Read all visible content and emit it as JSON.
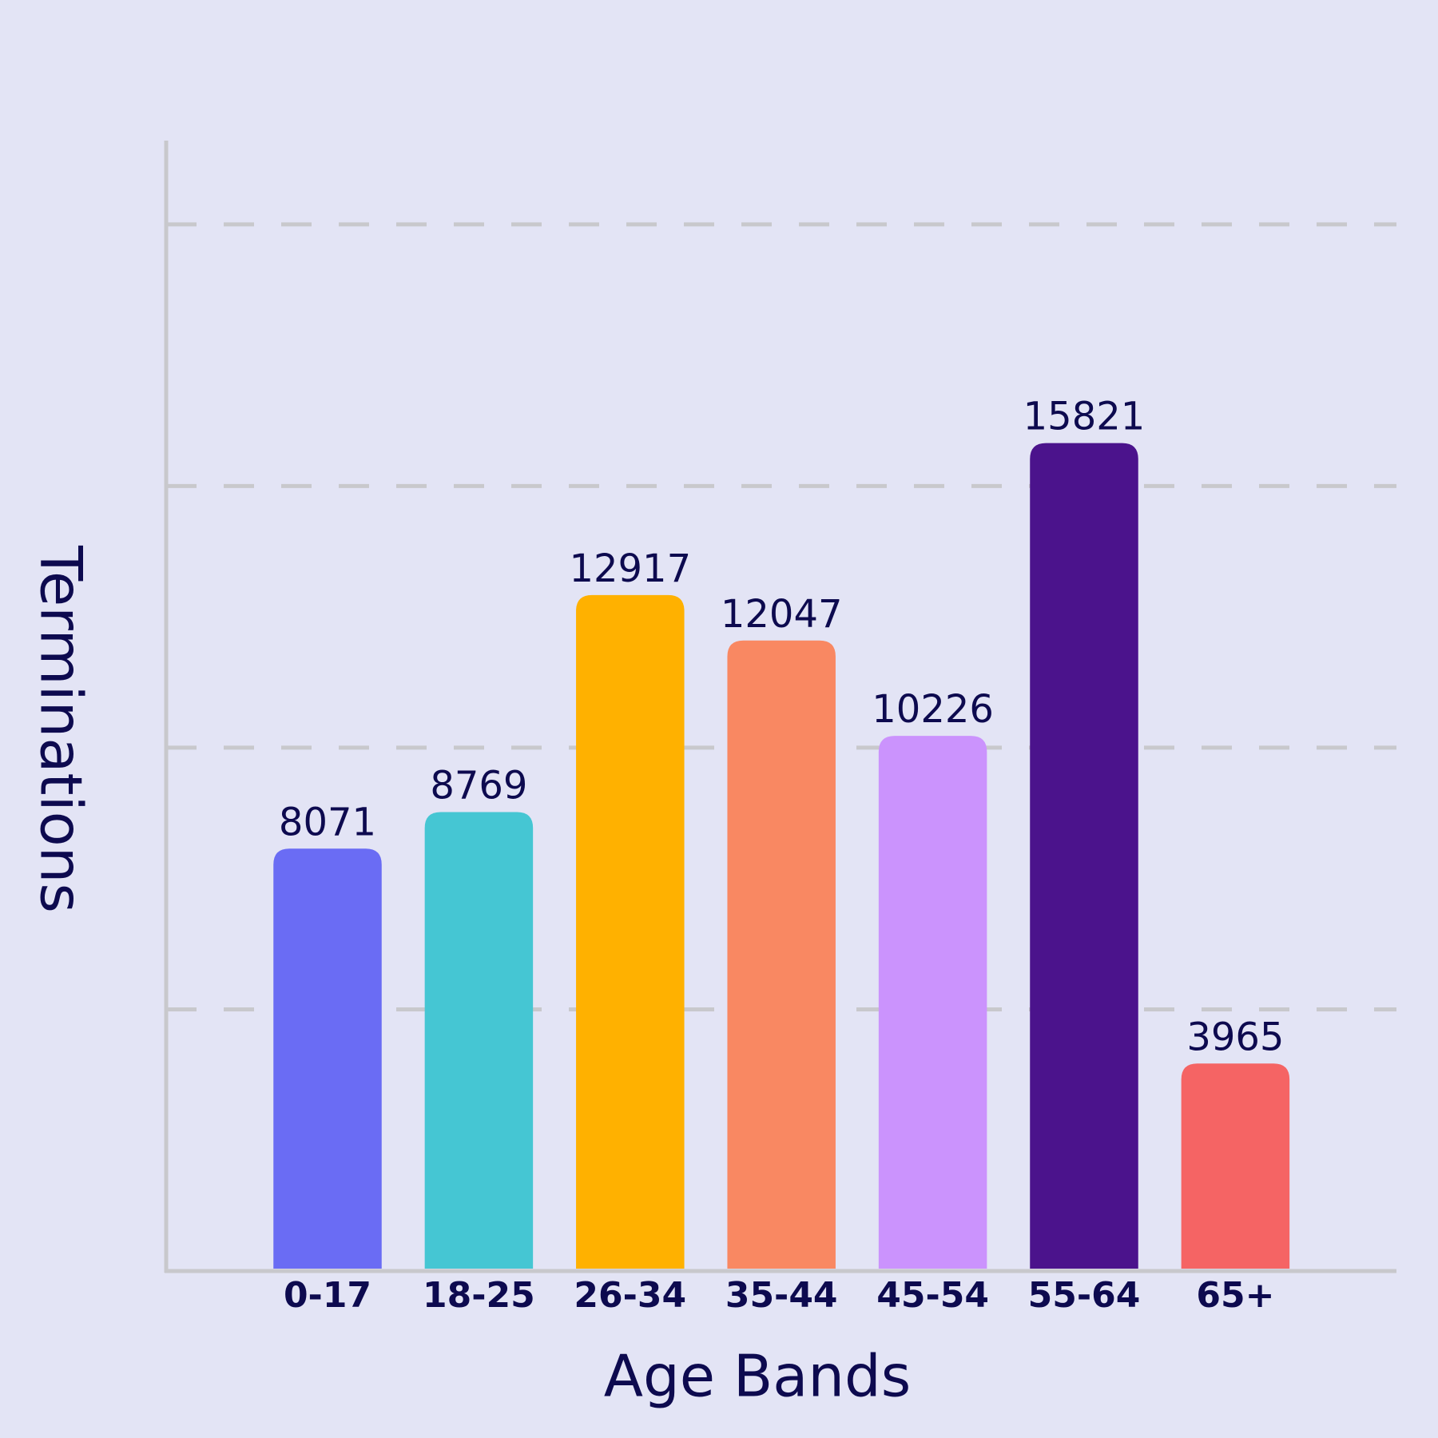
{
  "chart_data": {
    "type": "bar",
    "x_label": "Age Bands",
    "y_label": "Terminations",
    "categories": [
      "0-17",
      "18-25",
      "26-34",
      "35-44",
      "45-54",
      "55-64",
      "65+"
    ],
    "values": [
      8071,
      8769,
      12917,
      12047,
      10226,
      15821,
      3965
    ],
    "colors": [
      "#6a6cf4",
      "#45c6d3",
      "#ffb100",
      "#f98862",
      "#cb93fd",
      "#4b138c",
      "#f56464"
    ],
    "ylim": [
      0,
      21600
    ],
    "yticks": [
      5000,
      10000,
      15000,
      20000
    ],
    "grid": true
  }
}
